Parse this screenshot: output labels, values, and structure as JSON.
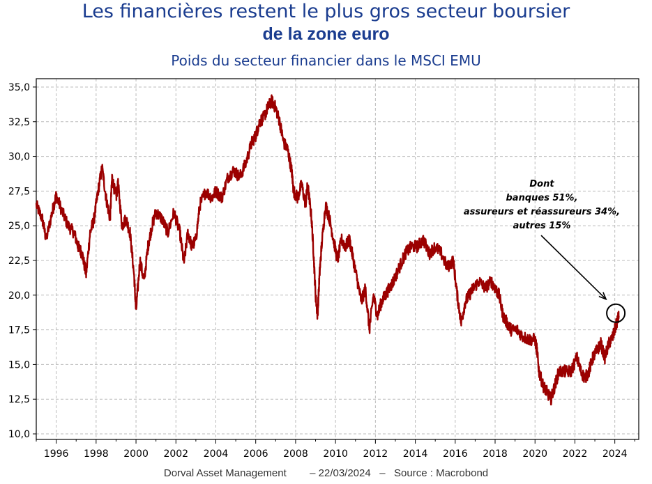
{
  "chart_data": {
    "type": "line",
    "title": "Les financières restent le plus gros secteur boursier",
    "title_line2": "de la zone euro",
    "subtitle": "Poids du secteur financier dans le MSCI EMU",
    "xlabel": "",
    "ylabel": "",
    "x_ticks": [
      "1996",
      "1998",
      "2000",
      "2002",
      "2004",
      "2006",
      "2008",
      "2010",
      "2012",
      "2014",
      "2016",
      "2018",
      "2020",
      "2022",
      "2024"
    ],
    "y_ticks": [
      "10,0",
      "12,5",
      "15,0",
      "17,5",
      "20,0",
      "22,5",
      "25,0",
      "27,5",
      "30,0",
      "32,5",
      "35,0"
    ],
    "xlim": [
      1995.0,
      2025.2
    ],
    "ylim": [
      9.6,
      35.6
    ],
    "grid": true,
    "line_color": "#9b0000",
    "series": [
      {
        "x": [
          1995.0,
          1995.3,
          1995.5,
          1995.8,
          1996.0,
          1996.3,
          1996.6,
          1996.9,
          1997.1,
          1997.3,
          1997.5,
          1997.7,
          1997.9,
          1998.1,
          1998.3,
          1998.5,
          1998.7,
          1998.8,
          1999.0,
          1999.1,
          1999.3,
          1999.5,
          1999.7,
          1999.9,
          2000.0,
          2000.2,
          2000.4,
          2000.6,
          2000.8,
          2001.0,
          2001.3,
          2001.6,
          2001.9,
          2002.2,
          2002.4,
          2002.6,
          2002.8,
          2003.0,
          2003.2,
          2003.5,
          2003.8,
          2004.0,
          2004.3,
          2004.6,
          2004.9,
          2005.2,
          2005.5,
          2005.8,
          2006.0,
          2006.2,
          2006.4,
          2006.6,
          2006.8,
          2007.0,
          2007.2,
          2007.4,
          2007.6,
          2007.8,
          2007.9,
          2008.1,
          2008.3,
          2008.5,
          2008.6,
          2008.8,
          2008.9,
          2009.0,
          2009.1,
          2009.2,
          2009.3,
          2009.5,
          2009.7,
          2009.9,
          2010.1,
          2010.3,
          2010.5,
          2010.7,
          2010.9,
          2011.1,
          2011.3,
          2011.5,
          2011.7,
          2011.9,
          2012.1,
          2012.3,
          2012.5,
          2012.7,
          2012.9,
          2013.2,
          2013.5,
          2013.8,
          2014.1,
          2014.4,
          2014.7,
          2015.0,
          2015.3,
          2015.6,
          2015.9,
          2016.1,
          2016.3,
          2016.5,
          2016.7,
          2016.9,
          2017.2,
          2017.5,
          2017.8,
          2018.0,
          2018.2,
          2018.4,
          2018.6,
          2018.8,
          2019.1,
          2019.4,
          2019.7,
          2020.0,
          2020.1,
          2020.2,
          2020.4,
          2020.6,
          2020.8,
          2021.0,
          2021.2,
          2021.5,
          2021.8,
          2022.1,
          2022.3,
          2022.5,
          2022.7,
          2022.9,
          2023.1,
          2023.3,
          2023.5,
          2023.7,
          2023.9,
          2024.1,
          2024.2
        ],
        "y": [
          26.5,
          25.5,
          24.0,
          26.0,
          27.2,
          26.0,
          25.0,
          24.5,
          23.5,
          23.0,
          21.5,
          24.5,
          25.5,
          27.5,
          29.2,
          27.0,
          25.5,
          28.5,
          27.0,
          28.0,
          25.0,
          25.5,
          24.5,
          21.5,
          18.8,
          22.5,
          21.0,
          23.5,
          25.0,
          26.0,
          25.5,
          24.5,
          26.0,
          24.5,
          22.3,
          24.5,
          23.5,
          24.0,
          26.5,
          27.5,
          27.0,
          27.5,
          27.0,
          28.5,
          29.0,
          28.5,
          29.5,
          31.0,
          31.5,
          32.5,
          32.8,
          33.5,
          34.0,
          33.5,
          32.5,
          31.0,
          30.5,
          29.0,
          27.5,
          27.0,
          28.0,
          26.5,
          28.0,
          25.5,
          23.0,
          20.0,
          18.5,
          21.5,
          23.5,
          26.5,
          25.5,
          24.0,
          22.5,
          24.0,
          23.5,
          24.0,
          22.5,
          21.0,
          19.5,
          20.5,
          17.5,
          20.0,
          18.5,
          19.5,
          20.0,
          20.5,
          21.0,
          22.0,
          23.0,
          23.5,
          23.5,
          24.0,
          23.0,
          23.5,
          23.0,
          22.0,
          22.5,
          20.0,
          18.0,
          19.5,
          20.0,
          20.5,
          21.0,
          20.5,
          21.0,
          20.5,
          20.0,
          18.5,
          18.0,
          17.5,
          17.5,
          17.0,
          16.8,
          16.8,
          16.0,
          14.5,
          13.5,
          13.0,
          12.5,
          13.5,
          14.5,
          14.5,
          14.5,
          15.5,
          14.5,
          14.0,
          14.5,
          15.5,
          16.0,
          16.5,
          15.5,
          16.5,
          17.0,
          18.0,
          18.5
        ]
      }
    ],
    "annotation": {
      "lines": [
        "Dont",
        "banques 51%,",
        "assureurs et réassureurs 34%,",
        "autres 15%"
      ],
      "target_x": 2024.05,
      "target_y": 18.7
    }
  },
  "footer": {
    "source": "Dorval Asset Management        – 22/03/2024   –   Source : Macrobond"
  }
}
